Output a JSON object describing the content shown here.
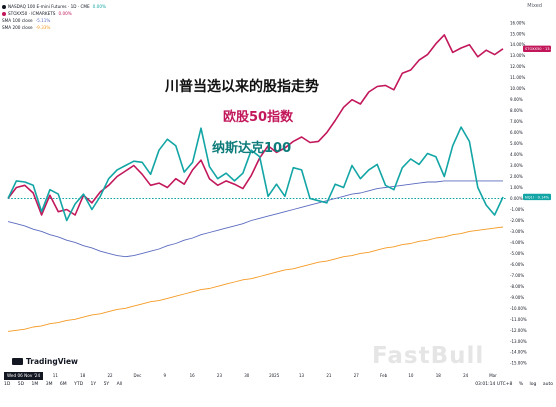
{
  "legend": {
    "row1": {
      "symbol": "NASDAQ 100 E-mini Futures · 1D · CME",
      "value": "0.00%",
      "color": "#131722"
    },
    "row2": {
      "symbol": "STOXX50 · ICMARKETS",
      "value": "0.00%",
      "color": "#c2185b"
    },
    "row3": {
      "symbol": "SMA 100 close",
      "value": "-5.11%",
      "color": "#5b6bbf"
    },
    "row4": {
      "symbol": "SMA 200 close",
      "value": "-9.33%",
      "color": "#f59a23"
    }
  },
  "top_right_label": "Mixed",
  "overlay": {
    "title": "川普当选以来的股指走势",
    "label_stoxx": "欧股50指数",
    "label_ndx": "纳斯达克100",
    "label_stoxx_color": "#c2185b",
    "label_ndx_color": "#0e7c7b"
  },
  "logo_text": "TradingView",
  "watermark": "FastBull",
  "date_badge": "Wed 06 Nov '24",
  "badges": {
    "stoxx": "STOXX50 · 13.63%",
    "ndx": "NQ1! · 0.14%"
  },
  "toolbar": [
    "1D",
    "5D",
    "1M",
    "3M",
    "6M",
    "YTD",
    "1Y",
    "5Y",
    "All"
  ],
  "status": {
    "time": "03:01:14 UTC+8",
    "pct": "%",
    "log": "log",
    "auto": "auto"
  },
  "colors": {
    "ndx": "#13a5a5",
    "stoxx": "#c2185b",
    "sma100": "#5b6bbf",
    "sma200": "#f59a23",
    "zero_line": "#13a5a5"
  },
  "chart_data": {
    "type": "line",
    "x_tick_labels": [
      "Nov",
      "11",
      "18",
      "22",
      "Dec",
      "9",
      "16",
      "23",
      "30",
      "2025",
      "13",
      "21",
      "27",
      "Feb",
      "10",
      "18",
      "24",
      "Mar"
    ],
    "y_ticks": [
      "16.00%",
      "15.00%",
      "14.00%",
      "13.00%",
      "12.00%",
      "11.00%",
      "10.00%",
      "9.00%",
      "8.00%",
      "7.00%",
      "6.00%",
      "5.00%",
      "4.00%",
      "3.00%",
      "2.00%",
      "1.00%",
      "0.00%",
      "-1.00%",
      "-2.00%",
      "-3.00%",
      "-4.00%",
      "-5.00%",
      "-6.00%",
      "-7.00%",
      "-8.00%",
      "-9.00%",
      "-10.00%",
      "-11.00%",
      "-12.00%",
      "-13.00%",
      "-14.00%",
      "-15.00%"
    ],
    "ylim": [
      -15.8,
      16.8
    ],
    "series": [
      {
        "name": "NASDAQ 100 E-mini Futures",
        "values": [
          0.0,
          1.6,
          1.5,
          1.2,
          -1.2,
          0.8,
          0.4,
          -2.0,
          -0.5,
          0.4,
          -1.0,
          0.2,
          1.8,
          2.6,
          3.0,
          3.4,
          3.3,
          2.2,
          4.4,
          5.4,
          4.8,
          2.4,
          3.3,
          6.4,
          2.9,
          1.8,
          2.3,
          1.6,
          2.3,
          4.4,
          3.8,
          0.2,
          1.3,
          0.2,
          2.8,
          2.6,
          0.0,
          -0.2,
          -0.4,
          1.3,
          1.0,
          3.0,
          1.8,
          2.6,
          3.1,
          1.2,
          0.8,
          2.8,
          3.6,
          3.1,
          4.1,
          3.8,
          2.0,
          4.8,
          6.5,
          5.2,
          1.0,
          -0.6,
          -1.5,
          0.14
        ]
      },
      {
        "name": "STOXX50",
        "values": [
          0.0,
          1.0,
          1.2,
          0.5,
          -1.5,
          0.3,
          -1.2,
          -1.0,
          -1.5,
          0.3,
          -0.4,
          0.6,
          1.2,
          2.0,
          2.5,
          3.0,
          2.2,
          1.2,
          1.4,
          1.0,
          1.8,
          1.3,
          2.6,
          3.5,
          1.8,
          1.2,
          1.6,
          1.3,
          0.9,
          2.1,
          3.7,
          4.8,
          4.2,
          4.6,
          5.2,
          5.6,
          5.1,
          5.2,
          6.0,
          7.1,
          8.3,
          9.0,
          8.6,
          9.7,
          10.2,
          10.3,
          9.9,
          11.4,
          11.7,
          12.6,
          13.1,
          14.1,
          14.9,
          13.3,
          13.7,
          14.0,
          12.9,
          13.5,
          13.1,
          13.63
        ]
      },
      {
        "name": "SMA 100 close",
        "values": [
          -2.1,
          -2.3,
          -2.5,
          -2.8,
          -3.0,
          -3.3,
          -3.5,
          -3.8,
          -4.0,
          -4.3,
          -4.5,
          -4.8,
          -5.0,
          -5.2,
          -5.3,
          -5.2,
          -5.0,
          -4.8,
          -4.6,
          -4.3,
          -4.1,
          -3.8,
          -3.6,
          -3.3,
          -3.1,
          -2.9,
          -2.7,
          -2.5,
          -2.3,
          -2.0,
          -1.8,
          -1.6,
          -1.4,
          -1.2,
          -1.0,
          -0.8,
          -0.6,
          -0.4,
          -0.2,
          0.0,
          0.2,
          0.4,
          0.5,
          0.7,
          0.9,
          1.0,
          1.1,
          1.2,
          1.3,
          1.4,
          1.5,
          1.5,
          1.6,
          1.6,
          1.6,
          1.6,
          1.6,
          1.6,
          1.6,
          1.6
        ]
      },
      {
        "name": "SMA 200 close",
        "values": [
          -12.1,
          -12.0,
          -11.9,
          -11.7,
          -11.6,
          -11.4,
          -11.3,
          -11.1,
          -11.0,
          -10.8,
          -10.6,
          -10.5,
          -10.3,
          -10.1,
          -10.0,
          -9.8,
          -9.6,
          -9.4,
          -9.3,
          -9.1,
          -8.9,
          -8.7,
          -8.5,
          -8.3,
          -8.2,
          -8.0,
          -7.8,
          -7.6,
          -7.4,
          -7.3,
          -7.1,
          -6.9,
          -6.7,
          -6.5,
          -6.4,
          -6.2,
          -6.0,
          -5.8,
          -5.7,
          -5.5,
          -5.3,
          -5.2,
          -5.0,
          -4.9,
          -4.7,
          -4.5,
          -4.4,
          -4.2,
          -4.1,
          -3.9,
          -3.8,
          -3.6,
          -3.5,
          -3.3,
          -3.2,
          -3.0,
          -2.9,
          -2.8,
          -2.7,
          -2.6
        ]
      }
    ]
  }
}
